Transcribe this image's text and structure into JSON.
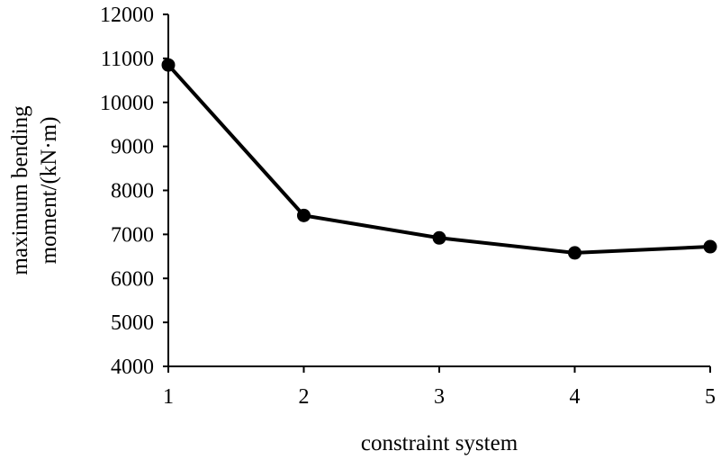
{
  "chart_data": {
    "type": "line",
    "title": "",
    "xlabel": "constraint system",
    "ylabel_lines": [
      "maximum bending",
      "moment/(kN·m)"
    ],
    "x": [
      1,
      2,
      3,
      4,
      5
    ],
    "x_ticks": [
      "1",
      "2",
      "3",
      "4",
      "5"
    ],
    "y_ticks": [
      4000,
      5000,
      6000,
      7000,
      8000,
      9000,
      10000,
      11000,
      12000
    ],
    "ylim": [
      4000,
      12000
    ],
    "xlim": [
      1,
      5
    ],
    "grid": false,
    "legend": "none",
    "series": [
      {
        "values": [
          10850,
          7430,
          6920,
          6580,
          6720
        ],
        "color": "#000000",
        "marker": "circle"
      }
    ]
  }
}
